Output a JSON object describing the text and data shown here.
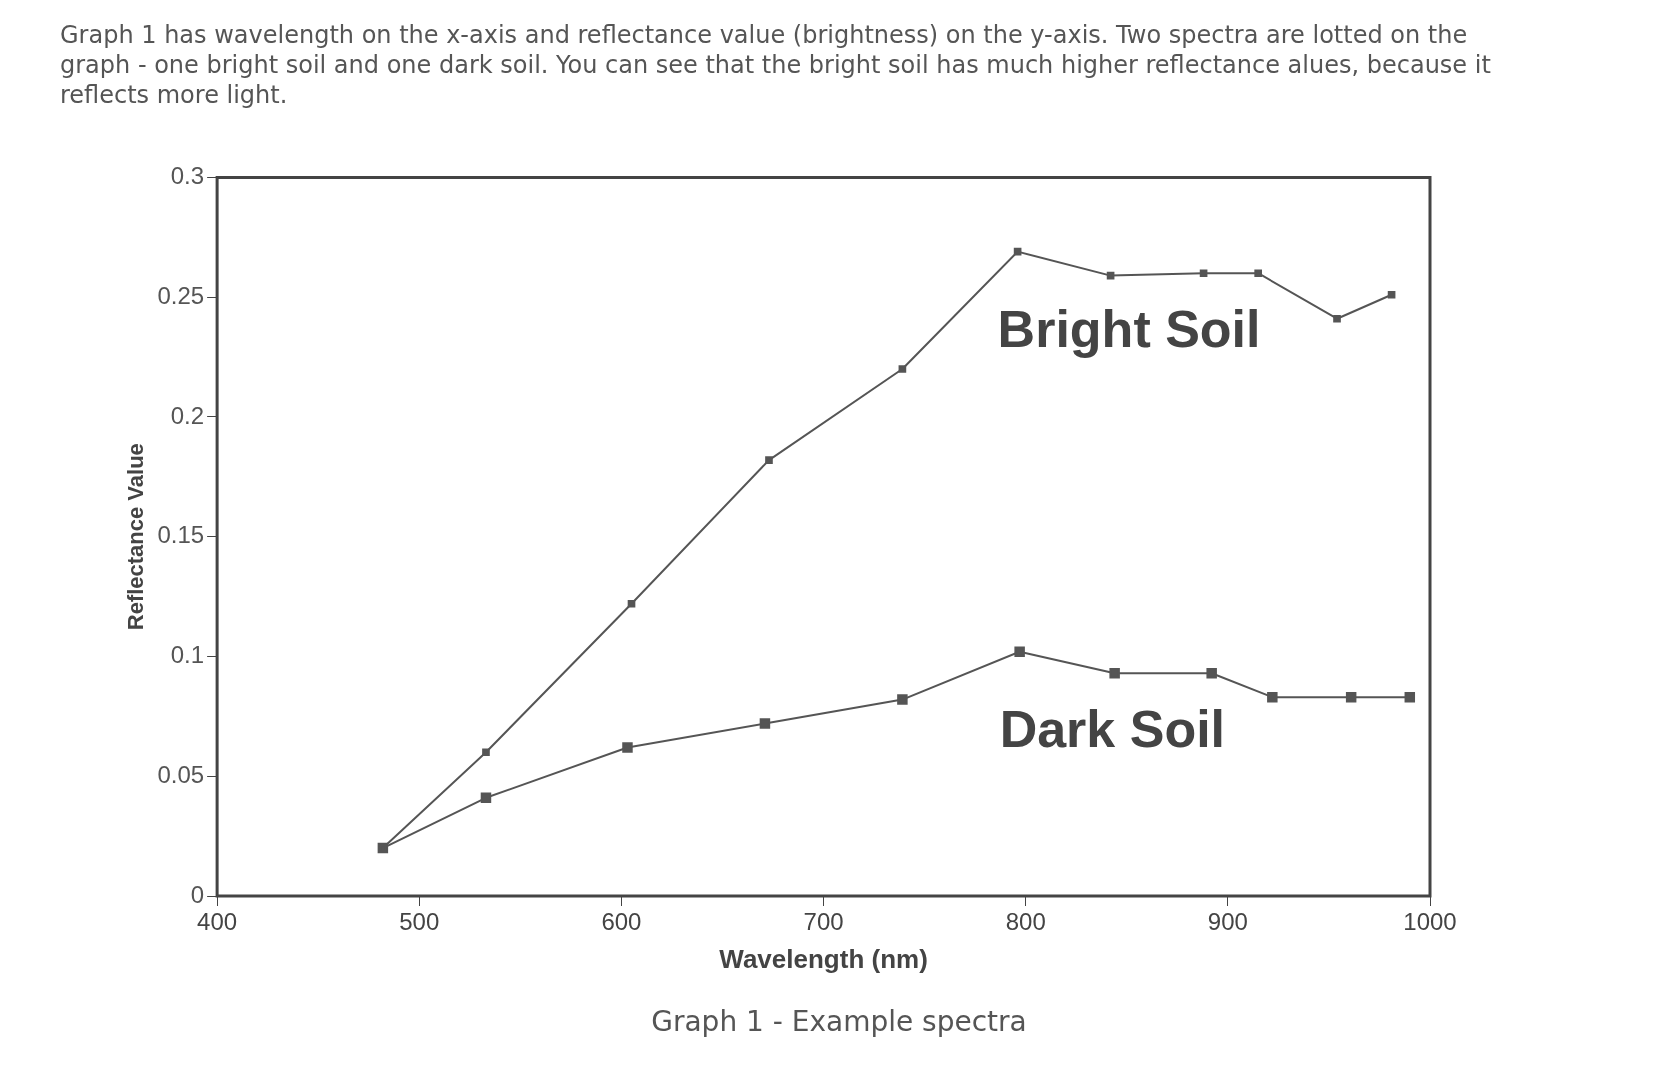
{
  "chart_data": {
    "type": "line",
    "title": "Graph 1 - Example spectra",
    "subtitle": "Graph 1 has wavelength on the x-axis and reflectance value (brightness) on the y-axis. Two spectra are lotted on the graph - one bright soil and one dark soil. You can see that the bright soil has much higher reflectance alues, because it reflects more light.",
    "xlabel": "Wavelength (nm)",
    "ylabel": "Reflectance Value",
    "series": [
      {
        "name": "Bright Soil",
        "color": "#555555",
        "x": [
          482,
          533,
          605,
          673,
          739,
          796,
          842,
          888,
          915,
          954,
          981
        ],
        "values": [
          0.02,
          0.06,
          0.122,
          0.182,
          0.22,
          0.269,
          0.259,
          0.26,
          0.26,
          0.241,
          0.251
        ]
      },
      {
        "name": "Dark Soil",
        "color": "#555555",
        "x": [
          482,
          533,
          603,
          671,
          739,
          797,
          844,
          892,
          922,
          961,
          990
        ],
        "values": [
          0.02,
          0.041,
          0.062,
          0.072,
          0.082,
          0.102,
          0.093,
          0.093,
          0.083,
          0.083,
          0.083
        ]
      }
    ],
    "xlim": [
      400,
      1000
    ],
    "xticks": [
      400,
      500,
      600,
      700,
      800,
      900,
      1000
    ],
    "ylim": [
      0,
      0.3
    ],
    "yticks": [
      0,
      0.05,
      0.1,
      0.15,
      0.2,
      0.25,
      0.3
    ],
    "grid": false,
    "legend": false,
    "marker": "square",
    "line_style": "solid"
  }
}
